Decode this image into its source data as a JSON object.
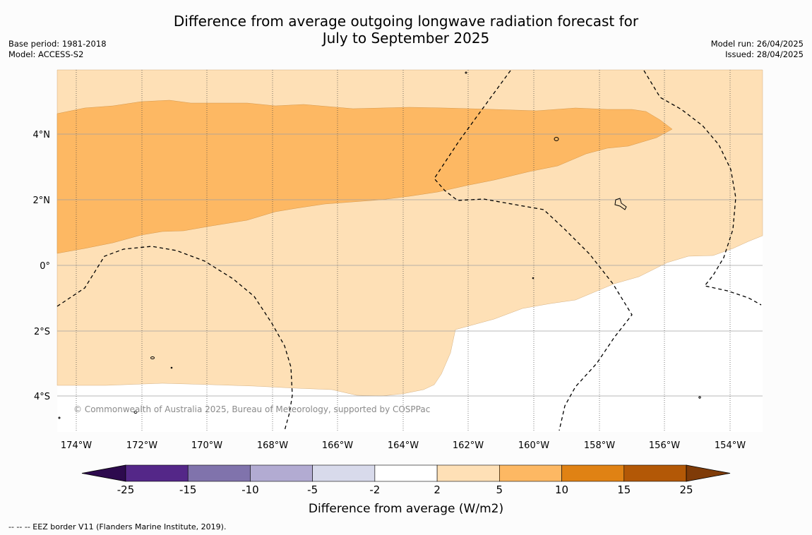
{
  "header": {
    "title_line1": "Difference from average outgoing longwave radiation forecast for",
    "title_line2": "July to September 2025",
    "base_period": "Base period: 1981-2018",
    "model": "Model: ACCESS-S2",
    "model_run": "Model run: 26/04/2025",
    "issued": "Issued: 28/04/2025"
  },
  "map": {
    "lon_labels": [
      "174°W",
      "172°W",
      "170°W",
      "168°W",
      "166°W",
      "164°W",
      "162°W",
      "160°W",
      "158°W",
      "156°W",
      "154°W"
    ],
    "lat_labels": [
      "4°N",
      "2°N",
      "0°",
      "2°S",
      "4°S"
    ],
    "copyright": "© Commonwealth of Australia 2025, Bureau of Meteorology, supported by COSPPac"
  },
  "colorbar": {
    "title": "Difference from average (W/m2)",
    "ticks": [
      "-25",
      "-15",
      "-10",
      "-5",
      "-2",
      "2",
      "5",
      "10",
      "15",
      "25"
    ],
    "colors": [
      "#2d0a4e",
      "#542788",
      "#8073ac",
      "#b2abd2",
      "#d8daeb",
      "#ffffff",
      "#fee0b6",
      "#fdb863",
      "#e08214",
      "#b35806",
      "#7f3b08"
    ]
  },
  "footer": {
    "eez_note": "--  --  -- EEZ border V11 (Flanders Marine Institute, 2019)."
  }
}
